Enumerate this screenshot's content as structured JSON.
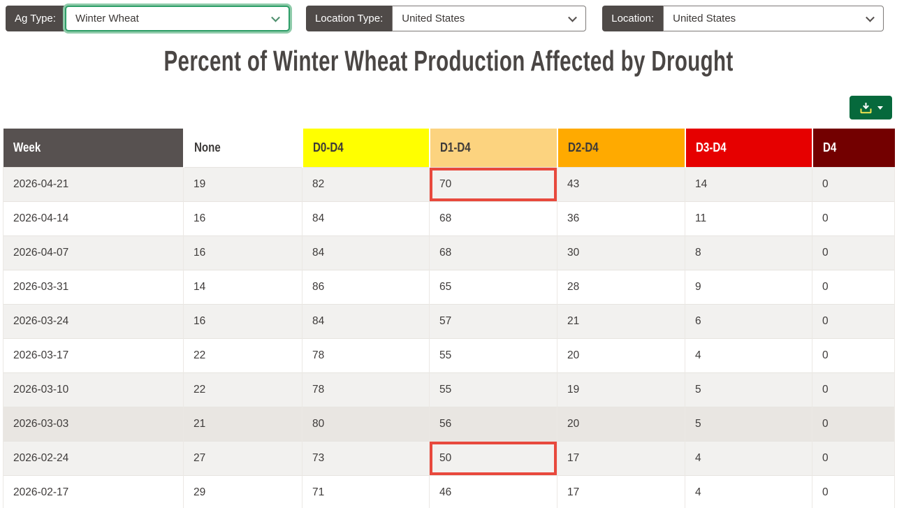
{
  "controls": [
    {
      "label": "Ag Type:",
      "value": "Winter Wheat",
      "focused": true
    },
    {
      "label": "Location Type:",
      "value": "United States",
      "focused": false
    },
    {
      "label": "Location:",
      "value": "United States",
      "focused": false
    }
  ],
  "title": "Percent of Winter Wheat Production Affected by Drought",
  "toolbar": {
    "download_button": {
      "icon": "download-icon",
      "caret_icon": "caret-down-icon",
      "color": "#06693c"
    }
  },
  "table": {
    "columns": [
      {
        "key": "week",
        "label": "Week",
        "bg": "#575150",
        "fg": "#ffffff"
      },
      {
        "key": "none",
        "label": "None",
        "bg": "#ffffff",
        "fg": "#3d3a39"
      },
      {
        "key": "d0",
        "label": "D0-D4",
        "bg": "#ffff00",
        "fg": "#3d3a39"
      },
      {
        "key": "d1",
        "label": "D1-D4",
        "bg": "#fcd37f",
        "fg": "#3d3a39"
      },
      {
        "key": "d2",
        "label": "D2-D4",
        "bg": "#ffaa00",
        "fg": "#3d3a39"
      },
      {
        "key": "d3",
        "label": "D3-D4",
        "bg": "#e60000",
        "fg": "#ffffff"
      },
      {
        "key": "d4",
        "label": "D4",
        "bg": "#730000",
        "fg": "#ffffff"
      }
    ],
    "hover_row_index": 7,
    "highlight_color": "#e8493d",
    "rows": [
      {
        "week": "2026-04-21",
        "none": "19",
        "d0": "82",
        "d1": "70",
        "d2": "43",
        "d3": "14",
        "d4": "0",
        "highlight": [
          "d1"
        ]
      },
      {
        "week": "2026-04-14",
        "none": "16",
        "d0": "84",
        "d1": "68",
        "d2": "36",
        "d3": "11",
        "d4": "0",
        "highlight": []
      },
      {
        "week": "2026-04-07",
        "none": "16",
        "d0": "84",
        "d1": "68",
        "d2": "30",
        "d3": "8",
        "d4": "0",
        "highlight": []
      },
      {
        "week": "2026-03-31",
        "none": "14",
        "d0": "86",
        "d1": "65",
        "d2": "28",
        "d3": "9",
        "d4": "0",
        "highlight": []
      },
      {
        "week": "2026-03-24",
        "none": "16",
        "d0": "84",
        "d1": "57",
        "d2": "21",
        "d3": "6",
        "d4": "0",
        "highlight": []
      },
      {
        "week": "2026-03-17",
        "none": "22",
        "d0": "78",
        "d1": "55",
        "d2": "20",
        "d3": "4",
        "d4": "0",
        "highlight": []
      },
      {
        "week": "2026-03-10",
        "none": "22",
        "d0": "78",
        "d1": "55",
        "d2": "19",
        "d3": "5",
        "d4": "0",
        "highlight": []
      },
      {
        "week": "2026-03-03",
        "none": "21",
        "d0": "80",
        "d1": "56",
        "d2": "20",
        "d3": "5",
        "d4": "0",
        "highlight": []
      },
      {
        "week": "2026-02-24",
        "none": "27",
        "d0": "73",
        "d1": "50",
        "d2": "17",
        "d3": "4",
        "d4": "0",
        "highlight": [
          "d1"
        ]
      },
      {
        "week": "2026-02-17",
        "none": "29",
        "d0": "71",
        "d1": "46",
        "d2": "17",
        "d3": "4",
        "d4": "0",
        "highlight": []
      }
    ]
  }
}
